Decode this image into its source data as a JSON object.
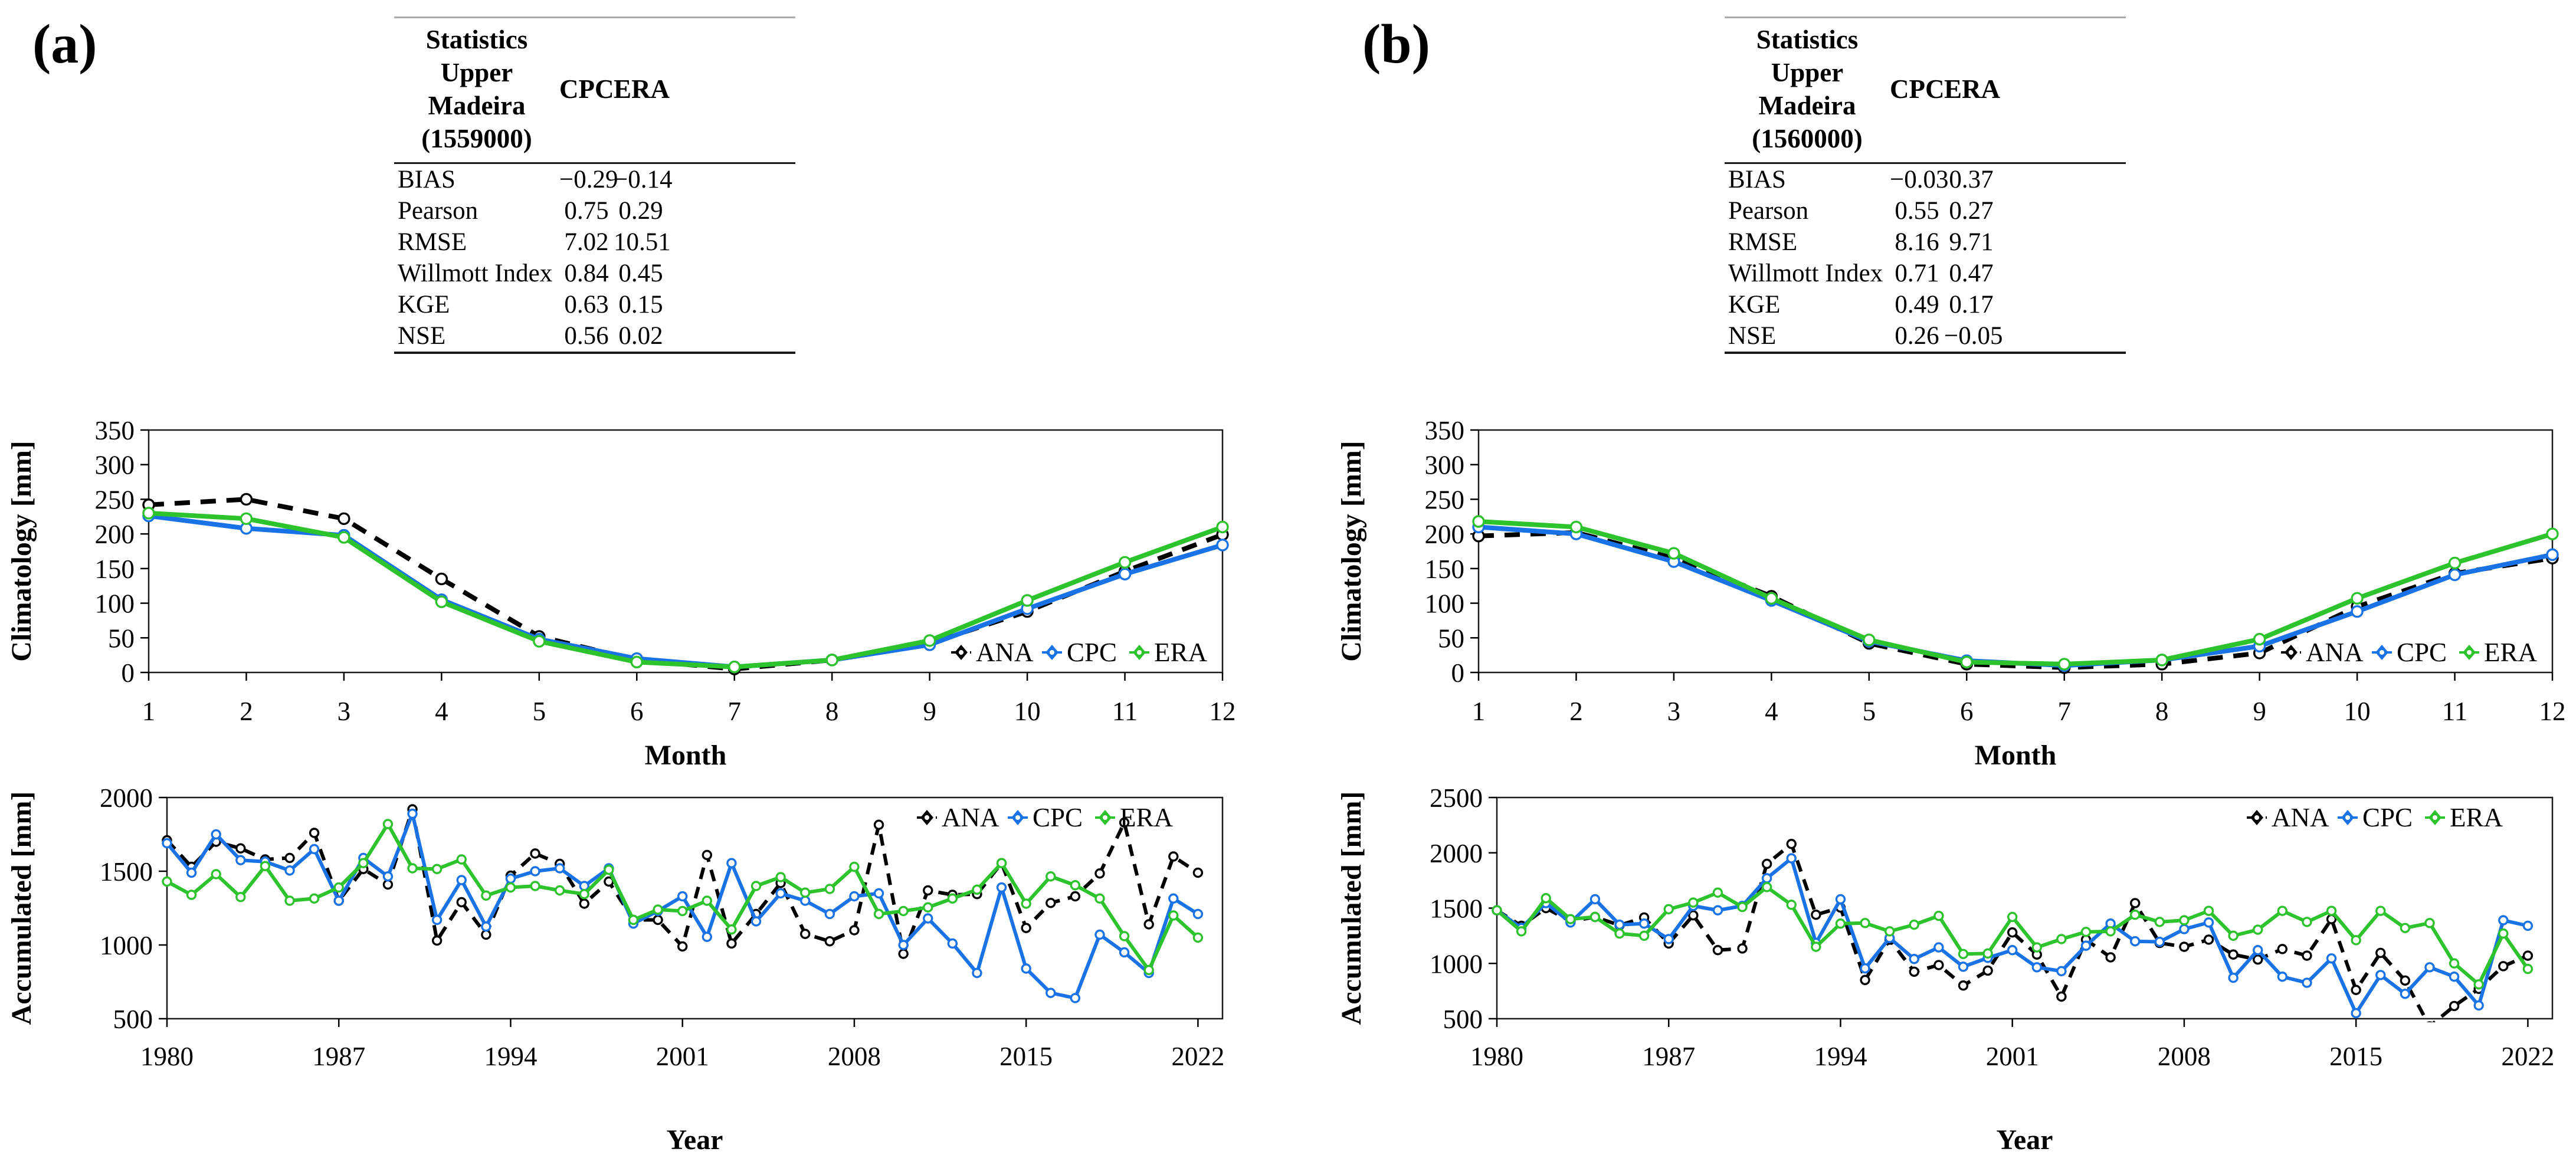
{
  "panels": [
    {
      "label": "(a)",
      "table": {
        "title_lines": [
          "Statistics",
          "Upper Madeira",
          "(1559000)"
        ],
        "columns": [
          "CPC",
          "ERA"
        ],
        "rows": [
          [
            "BIAS",
            "−0.29",
            "−0.14"
          ],
          [
            "Pearson",
            "0.75",
            "0.29"
          ],
          [
            "RMSE",
            "7.02",
            "10.51"
          ],
          [
            "Willmott Index",
            "0.84",
            "0.45"
          ],
          [
            "KGE",
            "0.63",
            "0.15"
          ],
          [
            "NSE",
            "0.56",
            "0.02"
          ]
        ]
      }
    },
    {
      "label": "(b)",
      "table": {
        "title_lines": [
          "Statistics",
          "Upper Madeira",
          "(1560000)"
        ],
        "columns": [
          "CPC",
          "ERA"
        ],
        "rows": [
          [
            "BIAS",
            "−0.03",
            "0.37"
          ],
          [
            "Pearson",
            "0.55",
            "0.27"
          ],
          [
            "RMSE",
            "8.16",
            "9.71"
          ],
          [
            "Willmott Index",
            "0.71",
            "0.47"
          ],
          [
            "KGE",
            "0.49",
            "0.17"
          ],
          [
            "NSE",
            "0.26",
            "−0.05"
          ]
        ]
      }
    }
  ],
  "chart_data": [
    {
      "type": "line",
      "panel": "(a)",
      "title": "",
      "xlabel": "Month",
      "ylabel": "Climatology [mm]",
      "x": [
        1,
        2,
        3,
        4,
        5,
        6,
        7,
        8,
        9,
        10,
        11,
        12
      ],
      "xlim": [
        1,
        12
      ],
      "ylim": [
        0,
        350
      ],
      "xticks": [
        1,
        2,
        3,
        4,
        5,
        6,
        7,
        8,
        9,
        10,
        11,
        12
      ],
      "yticks": [
        0,
        50,
        100,
        150,
        200,
        250,
        300,
        350
      ],
      "grid": false,
      "legend_position": "inside-bottom-right",
      "series": [
        {
          "name": "ANA",
          "color": "#000000",
          "dash": true,
          "values": [
            242,
            250,
            222,
            135,
            52,
            18,
            5,
            18,
            42,
            88,
            146,
            199
          ]
        },
        {
          "name": "CPC",
          "color": "#1973e6",
          "dash": false,
          "values": [
            226,
            208,
            198,
            105,
            48,
            20,
            8,
            18,
            40,
            92,
            142,
            184
          ]
        },
        {
          "name": "ERA",
          "color": "#2dc32d",
          "dash": false,
          "values": [
            230,
            222,
            195,
            102,
            45,
            15,
            8,
            18,
            46,
            104,
            159,
            210
          ]
        }
      ]
    },
    {
      "type": "line",
      "panel": "(a)",
      "title": "",
      "xlabel": "Year",
      "ylabel": "Accumulated [mm]",
      "x": [
        1980,
        1981,
        1982,
        1983,
        1984,
        1985,
        1986,
        1987,
        1988,
        1989,
        1990,
        1991,
        1992,
        1993,
        1994,
        1995,
        1996,
        1997,
        1998,
        1999,
        2000,
        2001,
        2002,
        2003,
        2004,
        2005,
        2006,
        2007,
        2008,
        2009,
        2010,
        2011,
        2012,
        2013,
        2014,
        2015,
        2016,
        2017,
        2018,
        2019,
        2020,
        2021,
        2022
      ],
      "xlim": [
        1980,
        2023
      ],
      "ylim": [
        500,
        2000
      ],
      "xticks": [
        1980,
        1987,
        1994,
        2001,
        2008,
        2015,
        2022
      ],
      "yticks": [
        500,
        1000,
        1500,
        2000
      ],
      "grid": false,
      "legend_position": "inside-top-right",
      "series": [
        {
          "name": "ANA",
          "color": "#000000",
          "dash": true,
          "values": [
            1710,
            1530,
            1700,
            1655,
            1580,
            1590,
            1760,
            1300,
            1515,
            1410,
            1920,
            1030,
            1290,
            1070,
            1470,
            1620,
            1550,
            1280,
            1430,
            1170,
            1170,
            990,
            1610,
            1010,
            1210,
            1420,
            1075,
            1025,
            1100,
            1815,
            940,
            1370,
            1340,
            1345,
            1555,
            1115,
            1285,
            1330,
            1485,
            1830,
            1140,
            1600,
            1490
          ]
        },
        {
          "name": "CPC",
          "color": "#1973e6",
          "dash": false,
          "values": [
            1690,
            1490,
            1750,
            1575,
            1565,
            1505,
            1650,
            1300,
            1590,
            1465,
            1890,
            1170,
            1440,
            1125,
            1450,
            1500,
            1520,
            1400,
            1520,
            1145,
            1230,
            1330,
            1055,
            1555,
            1160,
            1350,
            1300,
            1210,
            1330,
            1350,
            1000,
            1180,
            1010,
            810,
            1390,
            840,
            675,
            640,
            1070,
            950,
            810,
            1315,
            1210
          ]
        },
        {
          "name": "ERA",
          "color": "#2dc32d",
          "dash": false,
          "values": [
            1430,
            1340,
            1480,
            1325,
            1535,
            1300,
            1315,
            1390,
            1555,
            1820,
            1520,
            1515,
            1580,
            1335,
            1390,
            1400,
            1370,
            1345,
            1510,
            1170,
            1240,
            1230,
            1300,
            1105,
            1400,
            1460,
            1355,
            1380,
            1530,
            1210,
            1230,
            1255,
            1315,
            1375,
            1555,
            1280,
            1465,
            1405,
            1315,
            1060,
            830,
            1200,
            1050
          ]
        }
      ]
    },
    {
      "type": "line",
      "panel": "(b)",
      "title": "",
      "xlabel": "Month",
      "ylabel": "Climatology [mm]",
      "x": [
        1,
        2,
        3,
        4,
        5,
        6,
        7,
        8,
        9,
        10,
        11,
        12
      ],
      "xlim": [
        1,
        12
      ],
      "ylim": [
        0,
        350
      ],
      "xticks": [
        1,
        2,
        3,
        4,
        5,
        6,
        7,
        8,
        9,
        10,
        11,
        12
      ],
      "yticks": [
        0,
        50,
        100,
        150,
        200,
        250,
        300,
        350
      ],
      "grid": false,
      "legend_position": "inside-bottom-right",
      "series": [
        {
          "name": "ANA",
          "color": "#000000",
          "dash": true,
          "values": [
            197,
            202,
            165,
            110,
            42,
            12,
            7,
            12,
            28,
            95,
            143,
            165
          ]
        },
        {
          "name": "CPC",
          "color": "#1973e6",
          "dash": false,
          "values": [
            210,
            200,
            160,
            104,
            45,
            17,
            10,
            18,
            38,
            88,
            141,
            170
          ]
        },
        {
          "name": "ERA",
          "color": "#2dc32d",
          "dash": false,
          "values": [
            218,
            210,
            172,
            107,
            47,
            15,
            12,
            18,
            48,
            107,
            158,
            200
          ]
        }
      ]
    },
    {
      "type": "line",
      "panel": "(b)",
      "title": "",
      "xlabel": "Year",
      "ylabel": "Accumulated [mm]",
      "x": [
        1980,
        1981,
        1982,
        1983,
        1984,
        1985,
        1986,
        1987,
        1988,
        1989,
        1990,
        1991,
        1992,
        1993,
        1994,
        1995,
        1996,
        1997,
        1998,
        1999,
        2000,
        2001,
        2002,
        2003,
        2004,
        2005,
        2006,
        2007,
        2008,
        2009,
        2010,
        2011,
        2012,
        2013,
        2014,
        2015,
        2016,
        2017,
        2018,
        2019,
        2020,
        2021,
        2022
      ],
      "xlim": [
        1980,
        2023
      ],
      "ylim": [
        500,
        2500
      ],
      "xticks": [
        1980,
        1987,
        1994,
        2001,
        2008,
        2015,
        2022
      ],
      "yticks": [
        500,
        1000,
        1500,
        2000,
        2500
      ],
      "grid": false,
      "legend_position": "inside-top-right",
      "series": [
        {
          "name": "ANA",
          "color": "#000000",
          "dash": true,
          "values": [
            1480,
            1340,
            1500,
            1380,
            1420,
            1345,
            1415,
            1180,
            1435,
            1120,
            1135,
            1900,
            2080,
            1440,
            1505,
            850,
            1215,
            925,
            985,
            800,
            935,
            1280,
            1080,
            700,
            1215,
            1055,
            1545,
            1185,
            1150,
            1215,
            1080,
            1035,
            1130,
            1070,
            1400,
            760,
            1095,
            845,
            430,
            615,
            770,
            975,
            1070
          ]
        },
        {
          "name": "CPC",
          "color": "#1973e6",
          "dash": false,
          "values": [
            1480,
            1320,
            1545,
            1370,
            1580,
            1350,
            1360,
            1220,
            1520,
            1480,
            1520,
            1770,
            1950,
            1185,
            1580,
            955,
            1230,
            1040,
            1145,
            970,
            1050,
            1120,
            965,
            930,
            1160,
            1360,
            1200,
            1195,
            1310,
            1370,
            870,
            1120,
            880,
            825,
            1045,
            550,
            895,
            725,
            965,
            880,
            620,
            1390,
            1340
          ]
        },
        {
          "name": "ERA",
          "color": "#2dc32d",
          "dash": false,
          "values": [
            1480,
            1290,
            1590,
            1400,
            1420,
            1270,
            1250,
            1490,
            1550,
            1640,
            1510,
            1690,
            1530,
            1150,
            1360,
            1365,
            1290,
            1350,
            1430,
            1085,
            1090,
            1420,
            1145,
            1220,
            1285,
            1290,
            1440,
            1375,
            1390,
            1475,
            1250,
            1305,
            1475,
            1375,
            1475,
            1210,
            1475,
            1320,
            1365,
            1000,
            810,
            1270,
            950
          ]
        }
      ]
    }
  ],
  "colors": {
    "ana": "#000000",
    "cpc": "#1973e6",
    "era": "#2dc32d",
    "rule_light": "#ababab",
    "rule_dark": "#1a1a1a"
  }
}
